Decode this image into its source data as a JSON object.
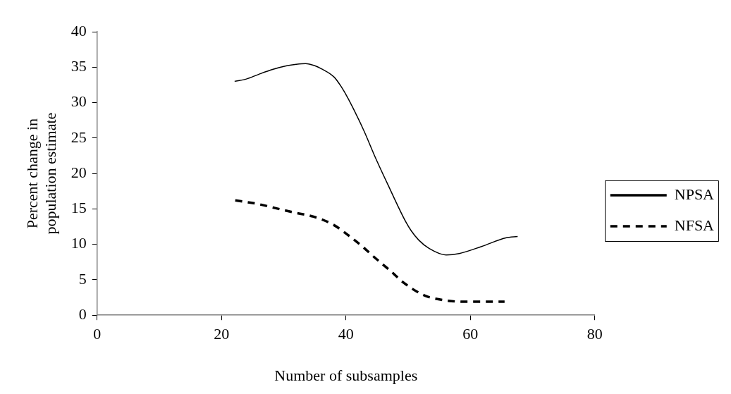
{
  "chart_data": {
    "type": "line",
    "xlabel": "Number of subsamples",
    "ylabel": "Percent change in population estimate",
    "xlim": [
      0,
      80
    ],
    "xticks": [
      0,
      20,
      40,
      60,
      80
    ],
    "ylim": [
      0,
      40
    ],
    "yticks": [
      0,
      5,
      10,
      15,
      20,
      25,
      30,
      35,
      40
    ],
    "legend": "right",
    "marker": "none",
    "series": [
      {
        "name": "NPSA",
        "color": "#000000",
        "line_style": "solid",
        "x": [
          22.1,
          23.9,
          26,
          28.3,
          30.5,
          32,
          33.5,
          35,
          36,
          38.1,
          39.2,
          40.4,
          42.9,
          44.6,
          46.7,
          49.6,
          50.5,
          51.7,
          53.4,
          56.1,
          58.2,
          61.8,
          65.7,
          67.6
        ],
        "values": [
          33.0,
          33.3,
          34.0,
          34.7,
          35.2,
          35.4,
          35.5,
          35.2,
          34.8,
          33.6,
          32.3,
          30.5,
          26.0,
          22.5,
          18.5,
          13.2,
          11.9,
          10.6,
          9.4,
          8.5,
          8.7,
          9.7,
          10.9,
          11.1
        ]
      },
      {
        "name": "NFSA",
        "color": "#000000",
        "line_style": "dashed",
        "x": [
          22.2,
          25.8,
          28.7,
          31.6,
          34.8,
          37.9,
          40.2,
          42.5,
          44.8,
          47.1,
          49.4,
          52.6,
          55.9,
          59.2,
          62.2,
          65.5
        ],
        "values": [
          16.2,
          15.7,
          15.1,
          14.5,
          13.9,
          12.8,
          11.4,
          9.8,
          8.0,
          6.3,
          4.5,
          2.8,
          2.1,
          1.9,
          1.9,
          1.9
        ]
      }
    ]
  }
}
